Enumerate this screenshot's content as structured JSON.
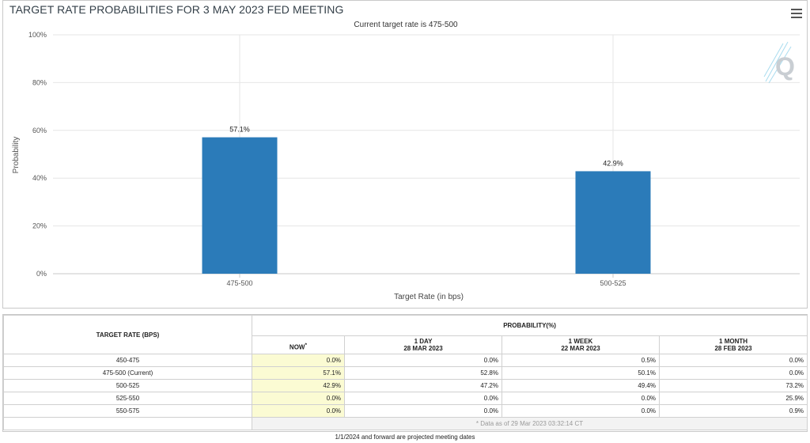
{
  "header": {
    "title": "TARGET RATE PROBABILITIES FOR 3 MAY 2023 FED MEETING"
  },
  "chart_data": {
    "type": "bar",
    "title": "TARGET RATE PROBABILITIES FOR 3 MAY 2023 FED MEETING",
    "subtitle": "Current target rate is 475-500",
    "categories": [
      "475-500",
      "500-525"
    ],
    "values": [
      57.1,
      42.9
    ],
    "data_labels": [
      "57.1%",
      "42.9%"
    ],
    "xlabel": "Target Rate (in bps)",
    "ylabel": "Probability",
    "ylim": [
      0,
      100
    ],
    "yticks": [
      0,
      20,
      40,
      60,
      80,
      100
    ],
    "ytick_labels": [
      "0%",
      "20%",
      "40%",
      "60%",
      "80%",
      "100%"
    ],
    "grid": true,
    "color": "#2b7bb9"
  },
  "table": {
    "col_target": "TARGET RATE (BPS)",
    "col_probability": "PROBABILITY(%)",
    "sub_headers": [
      {
        "line1": "NOW",
        "sup": "*",
        "line2": ""
      },
      {
        "line1": "1 DAY",
        "line2": "28 MAR 2023"
      },
      {
        "line1": "1 WEEK",
        "line2": "22 MAR 2023"
      },
      {
        "line1": "1 MONTH",
        "line2": "28 FEB 2023"
      }
    ],
    "rows": [
      {
        "rate": "450-475",
        "now": "0.0%",
        "day": "0.0%",
        "week": "0.5%",
        "month": "0.0%"
      },
      {
        "rate": "475-500 (Current)",
        "now": "57.1%",
        "day": "52.8%",
        "week": "50.1%",
        "month": "0.0%"
      },
      {
        "rate": "500-525",
        "now": "42.9%",
        "day": "47.2%",
        "week": "49.4%",
        "month": "73.2%"
      },
      {
        "rate": "525-550",
        "now": "0.0%",
        "day": "0.0%",
        "week": "0.0%",
        "month": "25.9%"
      },
      {
        "rate": "550-575",
        "now": "0.0%",
        "day": "0.0%",
        "week": "0.0%",
        "month": "0.9%"
      }
    ],
    "footnote": "* Data as of 29 Mar 2023 03:32:14 CT"
  },
  "bottom_note": "1/1/2024 and forward are projected meeting dates",
  "icons": {
    "menu": "hamburger-menu-icon",
    "watermark": "q-logo"
  }
}
